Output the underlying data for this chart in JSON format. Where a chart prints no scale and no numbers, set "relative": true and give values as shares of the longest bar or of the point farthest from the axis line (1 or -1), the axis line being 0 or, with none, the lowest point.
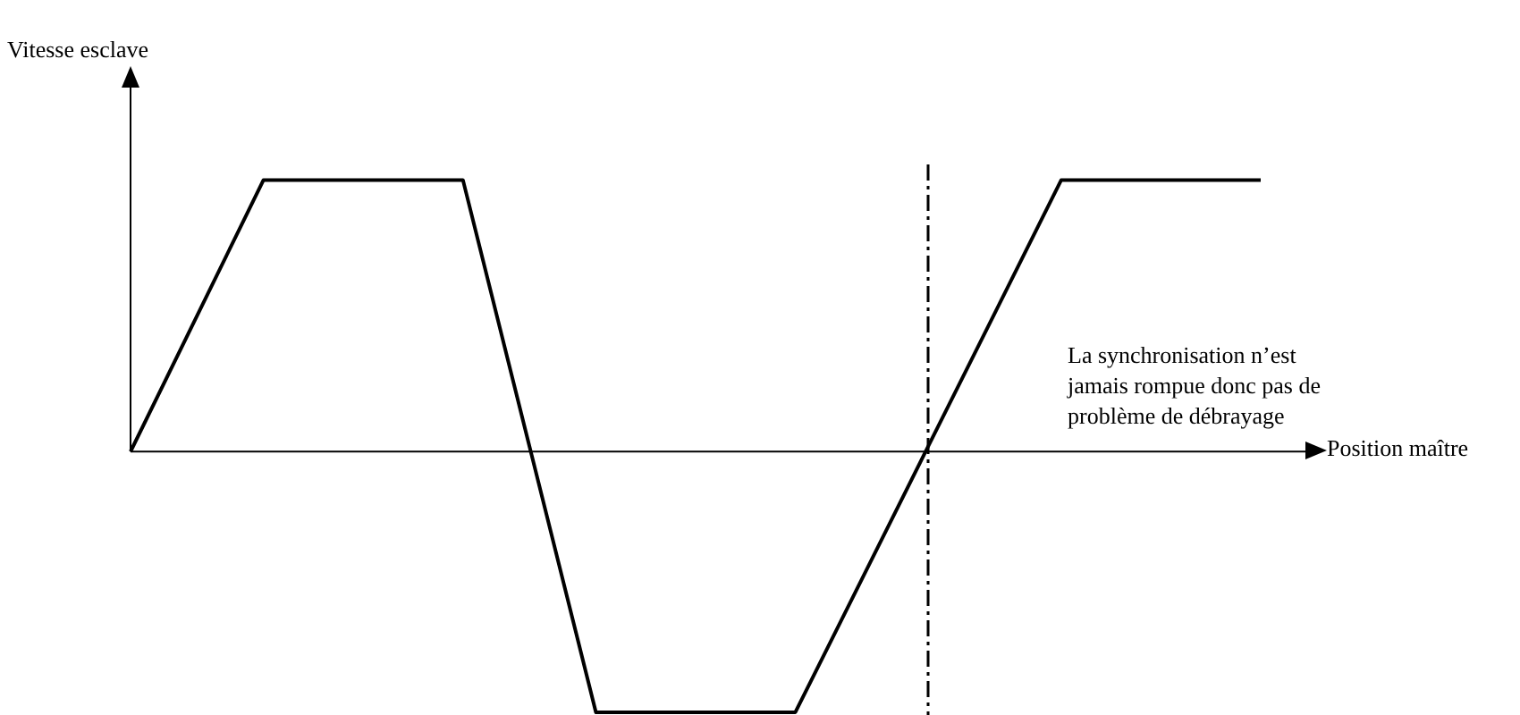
{
  "chart_data": {
    "type": "line",
    "relative": true,
    "xlabel": "Position maître",
    "categories": [
      null,
      null,
      null,
      null,
      null,
      null,
      null,
      null,
      null,
      null,
      null,
      null,
      null,
      null,
      null,
      null,
      null,
      null
    ],
    "series": [
      {
        "color": "#000000",
        "values": [
          0,
          0.5,
          1,
          1,
          1,
          1,
          0.02,
          -0.96,
          -0.96,
          -0.96,
          -0.96,
          -0.47,
          0.02,
          0.51,
          1,
          1,
          1,
          1
        ]
      }
    ],
    "annotations": [
      "Vitesse esclave",
      "La synchronisation n’est jamais rompue donc pas de problème de débrayage"
    ],
    "marker": "none",
    "line_style": "solid"
  }
}
